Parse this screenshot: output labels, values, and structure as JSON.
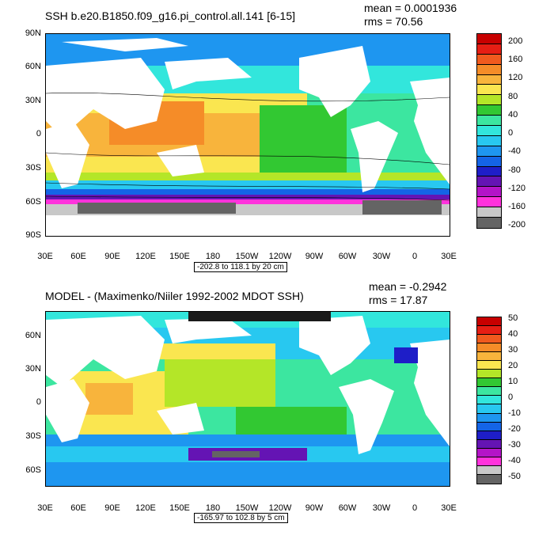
{
  "panels": [
    {
      "title": "SSH b.e20.B1850.f09_g16.pi_control.all.141 [6-15]",
      "mean": "mean = 0.0001936",
      "rms": "rms = 70.56",
      "lat_labels": [
        "90N",
        "60N",
        "30N",
        "0",
        "30S",
        "60S",
        "90S"
      ],
      "lon_labels": [
        "30E",
        "60E",
        "90E",
        "120E",
        "150E",
        "180",
        "150W",
        "120W",
        "90W",
        "60W",
        "30W",
        "0",
        "30E"
      ],
      "contour_info": "-202.8 to 118.1 by 20 cm",
      "colorbar_labels": [
        "200",
        "160",
        "120",
        "80",
        "40",
        "0",
        "-40",
        "-80",
        "-120",
        "-160",
        "-200"
      ],
      "colorbar_colors": [
        "#c80000",
        "#e61e14",
        "#f05a1e",
        "#f58c28",
        "#f8b43c",
        "#fae650",
        "#b4e628",
        "#32c832",
        "#3ce6a0",
        "#32e6dc",
        "#28c8f0",
        "#1e96f0",
        "#1464e6",
        "#1e1ec8",
        "#6414b4",
        "#b414c8",
        "#ff32dc",
        "#c8c8c8",
        "#646464"
      ]
    },
    {
      "title": "MODEL - (Maximenko/Niiler 1992-2002 MDOT SSH)",
      "mean": "mean = -0.2942",
      "rms": "rms = 17.87",
      "lat_labels": [
        "60N",
        "30N",
        "0",
        "30S",
        "60S"
      ],
      "lon_labels": [
        "30E",
        "60E",
        "90E",
        "120E",
        "150E",
        "180",
        "150W",
        "120W",
        "90W",
        "60W",
        "30W",
        "0",
        "30E"
      ],
      "contour_info": "-165.97 to 102.8 by 5 cm",
      "colorbar_labels": [
        "50",
        "40",
        "30",
        "20",
        "10",
        "0",
        "-10",
        "-20",
        "-30",
        "-40",
        "-50"
      ],
      "colorbar_colors": [
        "#c80000",
        "#e61e14",
        "#f05a1e",
        "#f58c28",
        "#f8b43c",
        "#fae650",
        "#b4e628",
        "#32c832",
        "#3ce6a0",
        "#32e6dc",
        "#28c8f0",
        "#1e96f0",
        "#1464e6",
        "#1e1ec8",
        "#6414b4",
        "#b414c8",
        "#ff32dc",
        "#c8c8c8",
        "#646464"
      ]
    }
  ]
}
